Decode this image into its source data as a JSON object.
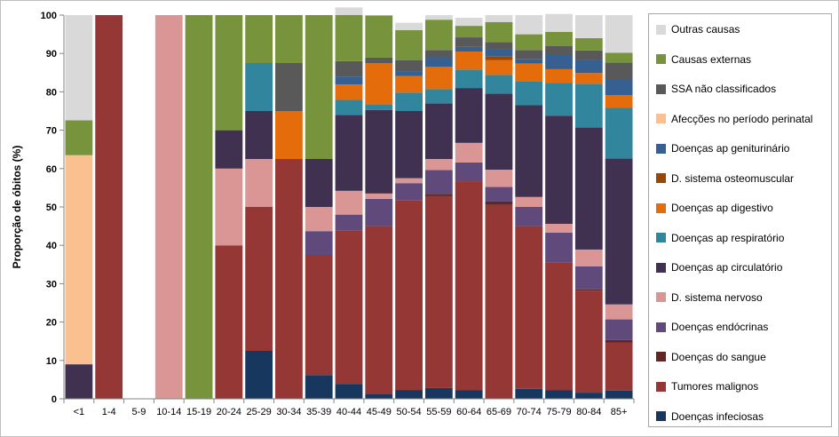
{
  "chart_data": {
    "type": "bar",
    "stacked": true,
    "ylabel": "Proporção de óbitos (%)",
    "xlabel": "",
    "ylim": [
      0,
      100
    ],
    "yticks": [
      0,
      10,
      20,
      30,
      40,
      50,
      60,
      70,
      80,
      90,
      100
    ],
    "grid": false,
    "legend_position": "right",
    "categories": [
      "<1",
      "1-4",
      "5-9",
      "10-14",
      "15-19",
      "20-24",
      "25-29",
      "30-34",
      "35-39",
      "40-44",
      "45-49",
      "50-54",
      "55-59",
      "60-64",
      "65-69",
      "70-74",
      "75-79",
      "80-84",
      "85+"
    ],
    "series": [
      {
        "name": "Doenças infeciosas",
        "color": "#17375e",
        "values": [
          0,
          0,
          0,
          0,
          0,
          0,
          12.5,
          0,
          6.2,
          3.9,
          1.3,
          2.3,
          2.8,
          2.2,
          0,
          2.6,
          2.2,
          1.6,
          2.1
        ]
      },
      {
        "name": "Tumores malignos",
        "color": "#953735",
        "values": [
          0,
          100,
          0,
          0,
          0,
          40,
          37.5,
          62.5,
          31.3,
          40,
          43.7,
          49.5,
          50,
          54.5,
          50.5,
          42.4,
          33.3,
          26.6,
          12.5
        ]
      },
      {
        "name": "Doenças do sangue",
        "color": "#632523",
        "values": [
          0,
          0,
          0,
          0,
          0,
          0,
          0,
          0,
          0,
          0,
          0,
          0,
          0.6,
          0,
          0.9,
          0,
          0,
          0.3,
          0.7
        ]
      },
      {
        "name": "Doenças endócrinas",
        "color": "#604a7b",
        "values": [
          0,
          0,
          0,
          0,
          0,
          0,
          0,
          0,
          6.2,
          4.1,
          7.1,
          4.4,
          6.2,
          4.9,
          3.8,
          5,
          7.8,
          6,
          5.4
        ]
      },
      {
        "name": "D. sistema nervoso",
        "color": "#da9694",
        "values": [
          0,
          0,
          0,
          100,
          0,
          20,
          12.5,
          0,
          6.3,
          6.2,
          1.4,
          1.3,
          2.9,
          5.1,
          4.5,
          2.6,
          2.3,
          4.4,
          3.9
        ]
      },
      {
        "name": "Doenças ap circulatório",
        "color": "#403151",
        "values": [
          9,
          0,
          0,
          0,
          0,
          10,
          12.5,
          0,
          12.5,
          19.8,
          21.8,
          17.5,
          14.5,
          14.3,
          19.8,
          23.9,
          28.2,
          31.8,
          38
        ]
      },
      {
        "name": "Doenças ap respiratório",
        "color": "#31859c",
        "values": [
          0,
          0,
          0,
          0,
          0,
          0,
          12.5,
          0,
          0,
          3.9,
          1.5,
          4.8,
          3.7,
          4.8,
          4.9,
          6.3,
          8.5,
          11.4,
          13.3
        ]
      },
      {
        "name": "Doenças ap digestivo",
        "color": "#e46c0a",
        "values": [
          0,
          0,
          0,
          0,
          0,
          0,
          0,
          12.5,
          0,
          4,
          10.7,
          4.3,
          5.8,
          4.7,
          3.9,
          4.6,
          3.6,
          2.8,
          3.2
        ]
      },
      {
        "name": "D. sistema osteomuscular",
        "color": "#974806",
        "values": [
          0,
          0,
          0,
          0,
          0,
          0,
          0,
          0,
          0,
          0,
          0,
          0,
          0,
          0,
          0.9,
          0,
          0,
          0,
          0
        ]
      },
      {
        "name": "Doenças ap geniturinário",
        "color": "#366092",
        "values": [
          0,
          0,
          0,
          0,
          0,
          0,
          0,
          0,
          0,
          2.1,
          0,
          1.3,
          2.5,
          1.2,
          2,
          1.1,
          3.8,
          3.3,
          4
        ]
      },
      {
        "name": "Afecções no período perinatal",
        "color": "#fac090",
        "values": [
          54.5,
          0,
          0,
          0,
          0,
          0,
          0,
          0,
          0,
          0,
          0,
          0,
          0,
          0,
          0,
          0,
          0,
          0,
          0
        ]
      },
      {
        "name": "SSA não classificados",
        "color": "#595959",
        "values": [
          0,
          0,
          0,
          0,
          0,
          0,
          0,
          12.5,
          0,
          4,
          1.4,
          2.8,
          1.9,
          2.5,
          1.8,
          2.4,
          2.2,
          2.6,
          4.5
        ]
      },
      {
        "name": "Causas externas",
        "color": "#77933c",
        "values": [
          9.1,
          0,
          0,
          0,
          100,
          30,
          12.5,
          12.5,
          37.5,
          12,
          11,
          7.9,
          7.9,
          3,
          5.2,
          4.1,
          3.7,
          3.2,
          2.6
        ]
      },
      {
        "name": "Outras causas",
        "color": "#d9d9d9",
        "values": [
          27.4,
          0,
          0,
          0,
          0,
          0,
          0,
          0,
          0,
          2,
          0.1,
          1.9,
          1.2,
          2.1,
          1.8,
          5,
          4.7,
          6,
          9.8
        ]
      }
    ],
    "legend_order": [
      "Outras causas",
      "Causas externas",
      "SSA não classificados",
      "Afecções no período perinatal",
      "Doenças ap geniturinário",
      "D. sistema osteomuscular",
      "Doenças ap digestivo",
      "Doenças ap respiratório",
      "Doenças ap circulatório",
      "D. sistema nervoso",
      "Doenças endócrinas",
      "Doenças do sangue",
      "Tumores malignos",
      "Doenças infeciosas"
    ]
  }
}
